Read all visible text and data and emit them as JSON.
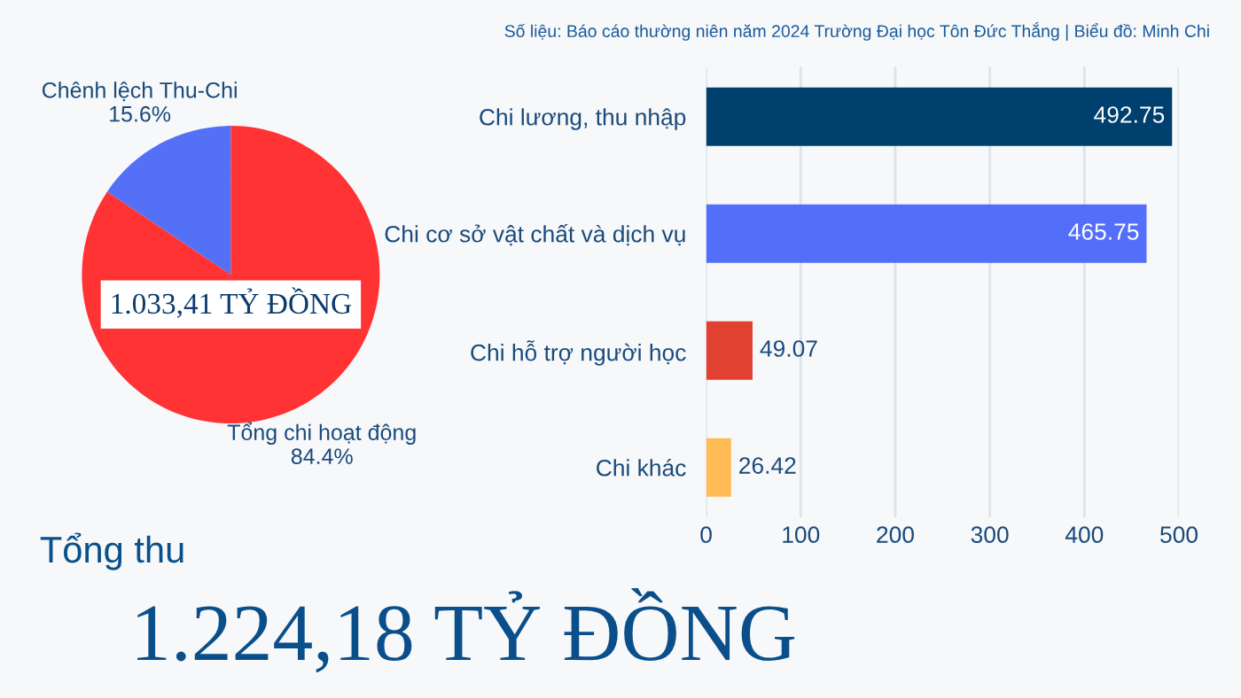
{
  "chart_data": [
    {
      "type": "pie",
      "categories": [
        "Chênh lệch Thu-Chi",
        "Tổng chi hoạt động"
      ],
      "values": [
        15.6,
        84.4
      ],
      "colors": [
        "#5470f6",
        "#ff3333"
      ],
      "value_labels": [
        "15.6%",
        "84.4%"
      ],
      "annotations": [
        "1.033,41 TỶ ĐỒNG",
        "Tổng thu",
        "1.224,18 TỶ ĐỒNG"
      ]
    },
    {
      "type": "bar",
      "orientation": "horizontal",
      "categories": [
        "Chi lương, thu nhập",
        "Chi cơ sở vật chất và dịch vụ",
        "Chi hỗ trợ người học",
        "Chi khác"
      ],
      "values": [
        492.75,
        465.75,
        49.07,
        26.42
      ],
      "colors": [
        "#00406e",
        "#536ffa",
        "#e04130",
        "#ffbb55"
      ],
      "xlim": [
        0,
        500
      ],
      "xticks": [
        0,
        100,
        200,
        300,
        400,
        500
      ],
      "grid": "x",
      "data_labels": true,
      "annotations": [
        "Số liệu: Báo cáo thường niên năm 2024 Trường Đại học Tôn Đức Thắng | Biểu đồ: Minh Chi"
      ]
    }
  ]
}
